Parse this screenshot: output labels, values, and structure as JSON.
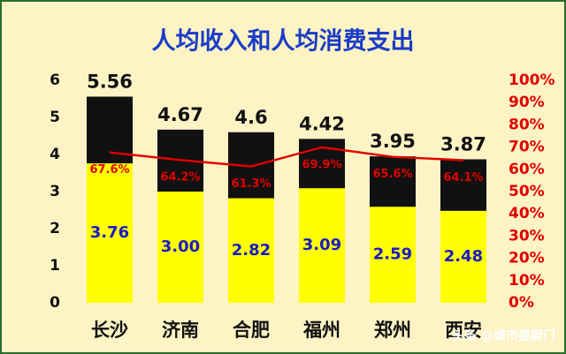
{
  "chart_data": {
    "type": "bar-line",
    "title": "人均收入和人均消费支出",
    "categories": [
      "长沙",
      "济南",
      "合肥",
      "福州",
      "郑州",
      "西安"
    ],
    "series": [
      {
        "type": "bar",
        "color": "#111111",
        "label_color": "#111111",
        "values": [
          5.56,
          4.67,
          4.6,
          4.42,
          3.95,
          3.87
        ]
      },
      {
        "type": "bar",
        "color": "#ffff00",
        "label_color": "#1a1ac8",
        "values": [
          3.76,
          3.0,
          2.82,
          3.09,
          2.59,
          2.48
        ],
        "value_labels": [
          "3.76",
          "3.00",
          "2.82",
          "3.09",
          "2.59",
          "2.48"
        ]
      },
      {
        "type": "line",
        "axis": "y2",
        "color": "#e00000",
        "values": [
          67.6,
          64.2,
          61.3,
          69.9,
          65.6,
          64.1
        ],
        "value_labels": [
          "67.6%",
          "64.2%",
          "61.3%",
          "69.9%",
          "65.6%",
          "64.1%"
        ]
      }
    ],
    "ylim": [
      0,
      6
    ],
    "yticks": [
      0,
      1,
      2,
      3,
      4,
      5,
      6
    ],
    "y2lim": [
      0,
      100
    ],
    "y2ticks": [
      {
        "value": 0,
        "label": "0%"
      },
      {
        "value": 10,
        "label": "10%"
      },
      {
        "value": 20,
        "label": "20%"
      },
      {
        "value": 30,
        "label": "30%"
      },
      {
        "value": 40,
        "label": "40%"
      },
      {
        "value": 50,
        "label": "50%"
      },
      {
        "value": 60,
        "label": "60%"
      },
      {
        "value": 70,
        "label": "70%"
      },
      {
        "value": 80,
        "label": "80%"
      },
      {
        "value": 90,
        "label": "90%"
      },
      {
        "value": 100,
        "label": "100%"
      }
    ],
    "watermark": "头条 @城市晏照门"
  }
}
